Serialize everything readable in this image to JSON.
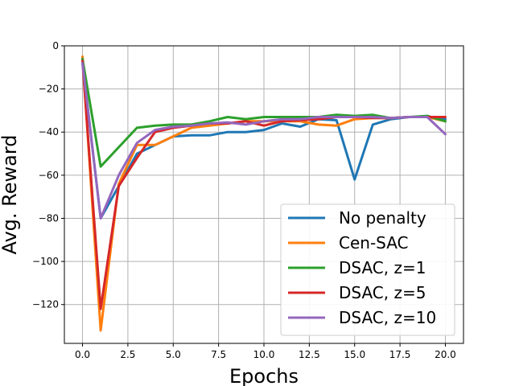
{
  "chart_data": {
    "type": "line",
    "xlabel": "Epochs",
    "ylabel": "Avg. Reward",
    "xlim": [
      -1,
      21
    ],
    "ylim": [
      -138,
      0
    ],
    "xticks": [
      0,
      2.5,
      5,
      7.5,
      10,
      12.5,
      15,
      17.5,
      20
    ],
    "xtick_labels": [
      "0.0",
      "2.5",
      "5.0",
      "7.5",
      "10.0",
      "12.5",
      "15.0",
      "17.5",
      "20.0"
    ],
    "yticks": [
      0,
      -20,
      -40,
      -60,
      -80,
      -100,
      -120
    ],
    "ytick_labels": [
      "0",
      "−20",
      "−40",
      "−60",
      "−80",
      "−100",
      "−120"
    ],
    "grid": true,
    "legend_position": "bottom-right",
    "x": [
      0,
      1,
      2,
      3,
      4,
      5,
      6,
      7,
      8,
      9,
      10,
      11,
      12,
      13,
      14,
      15,
      16,
      17,
      18,
      19,
      20
    ],
    "series": [
      {
        "name": "No penalty",
        "color": "#1f77b4",
        "values": [
          -8,
          -80,
          -65,
          -50,
          -46,
          -42,
          -41.5,
          -41.5,
          -40,
          -40,
          -39,
          -36,
          -37.5,
          -34,
          -34.5,
          -62,
          -36.5,
          -34,
          -33,
          -33,
          -34
        ]
      },
      {
        "name": "Cen-SAC",
        "color": "#ff7f0e",
        "values": [
          -5,
          -132,
          -64,
          -46,
          -46,
          -42,
          -38,
          -37,
          -36,
          -35,
          -35,
          -35,
          -35,
          -36.5,
          -37,
          -34,
          -33.5,
          -33.5,
          -33,
          -33,
          -35
        ]
      },
      {
        "name": "DSAC, z=1",
        "color": "#2ca02c",
        "values": [
          -6,
          -56,
          -47,
          -38,
          -37,
          -36.5,
          -36.5,
          -35,
          -33,
          -34,
          -33,
          -33,
          -33,
          -33,
          -32,
          -32.5,
          -32,
          -33.5,
          -33,
          -32.5,
          -35
        ]
      },
      {
        "name": "DSAC, z=5",
        "color": "#d62728",
        "values": [
          -7,
          -122,
          -65,
          -52,
          -40,
          -38,
          -37,
          -36,
          -36,
          -35,
          -37,
          -35,
          -34.5,
          -34,
          -33,
          -33,
          -33.5,
          -33.5,
          -33,
          -33,
          -33
        ]
      },
      {
        "name": "DSAC, z=10",
        "color": "#9467bd",
        "values": [
          -8,
          -80,
          -60,
          -45,
          -39,
          -37.5,
          -37,
          -36,
          -35.5,
          -36.5,
          -35,
          -34,
          -34,
          -33,
          -33,
          -33,
          -33,
          -33.5,
          -33,
          -33,
          -41
        ]
      }
    ]
  }
}
